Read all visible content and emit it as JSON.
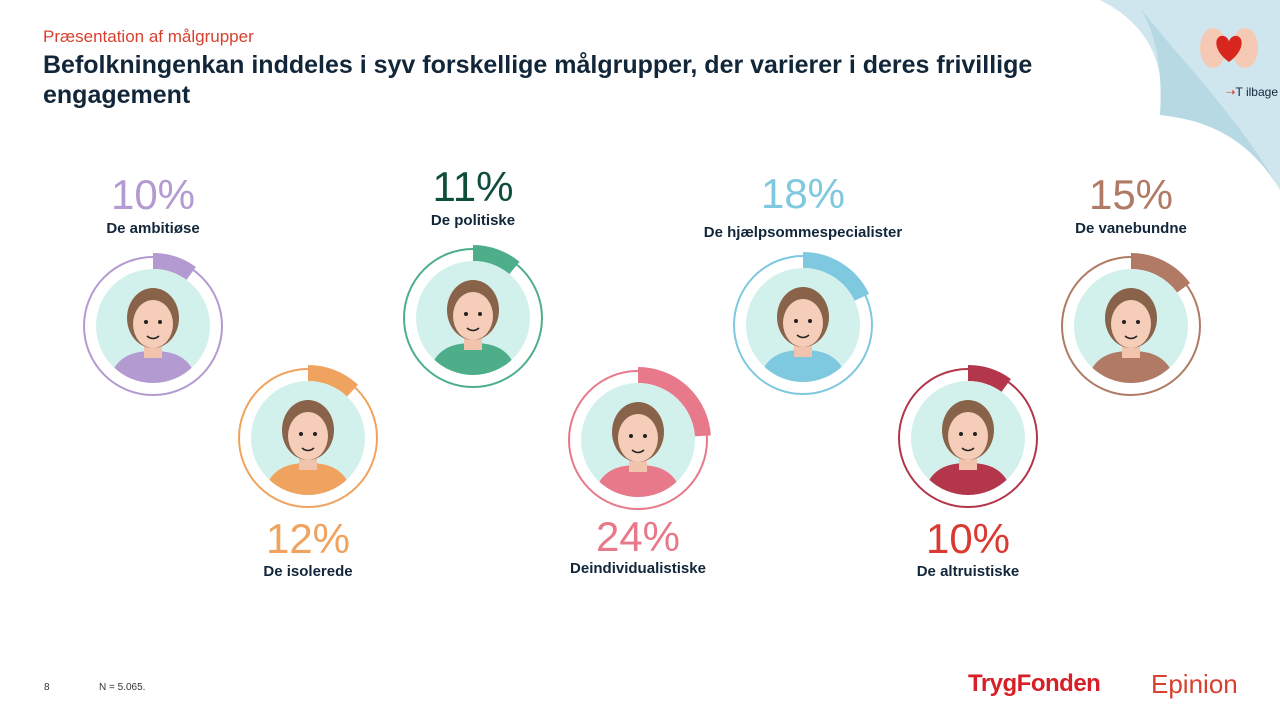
{
  "header": {
    "kicker": "Præsentation af målgrupper",
    "title": "Befolkningenkan inddeles i syv forskellige målgrupper, der varierer i deres frivillige engagement"
  },
  "nav": {
    "back_label": "T ilbage",
    "back_icon": "arrow-right-icon",
    "corner_icon": "hands-heart-icon"
  },
  "personas": [
    {
      "name": "De ambitiøse",
      "percent": 10,
      "pct_label": "10%",
      "color": "#b39bd1",
      "text_color": "#b39bd1"
    },
    {
      "name": "De isolerede",
      "percent": 12,
      "pct_label": "12%",
      "color": "#f0a35e",
      "text_color": "#f0a35e"
    },
    {
      "name": "De politiske",
      "percent": 11,
      "pct_label": "11%",
      "color": "#4fae8a",
      "text_color": "#0f4d3c"
    },
    {
      "name": "Deindividualistiske",
      "percent": 24,
      "pct_label": "24%",
      "color": "#e8798a",
      "text_color": "#e8798a"
    },
    {
      "name": "De hjælpsommespecialister",
      "percent": 18,
      "pct_label": "18%",
      "color": "#7ec8e0",
      "text_color": "#7ec8e0"
    },
    {
      "name": "De altruistiske",
      "percent": 10,
      "pct_label": "10%",
      "color": "#b3364a",
      "text_color": "#d93a32"
    },
    {
      "name": "De vanebundne",
      "percent": 15,
      "pct_label": "15%",
      "color": "#b07a65",
      "text_color": "#b07a65"
    }
  ],
  "footer": {
    "page": "8",
    "note": "N = 5.065.",
    "logo_trygfonden": "TrygFonden",
    "logo_epinion": "Epinion"
  }
}
